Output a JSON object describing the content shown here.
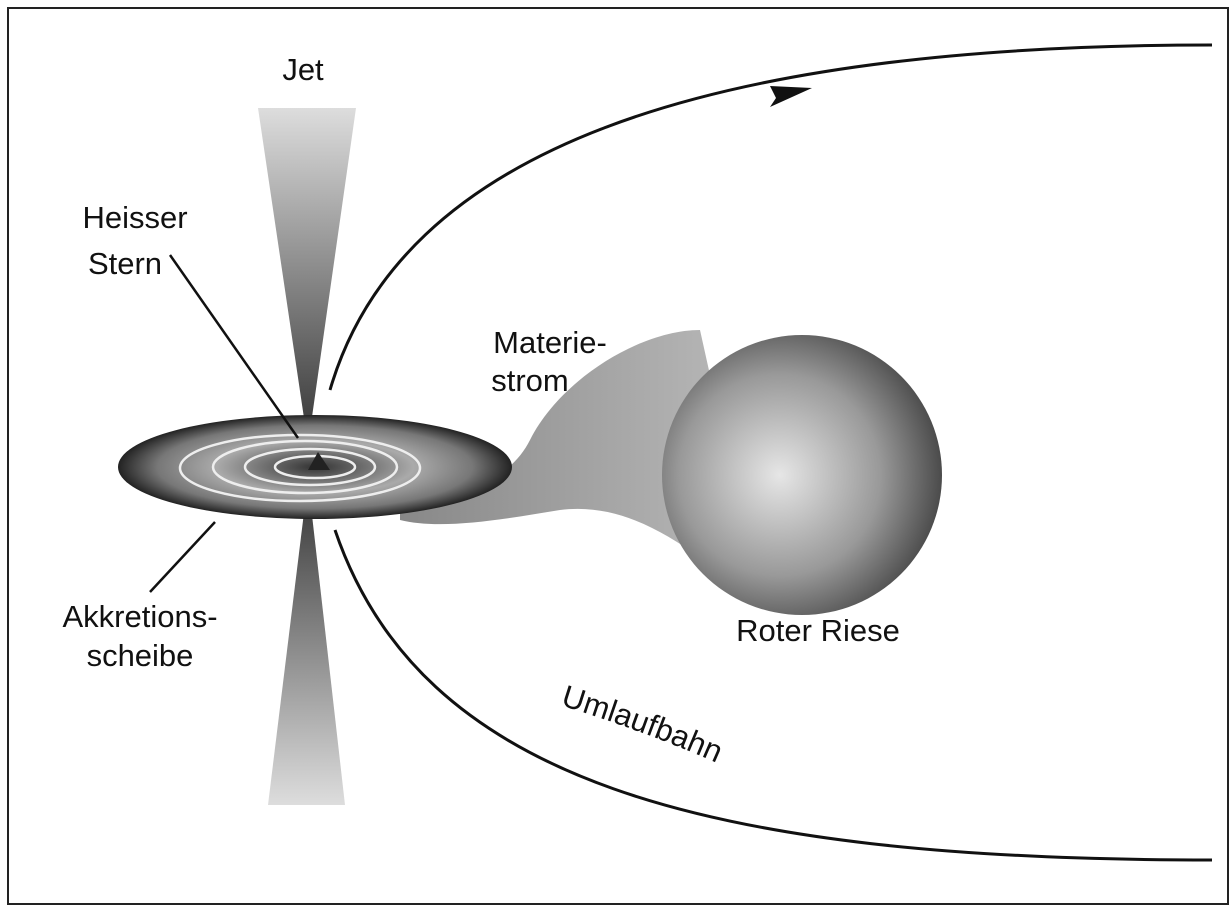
{
  "labels": {
    "jet": "Jet",
    "hot_star": [
      "Heisser",
      "Stern"
    ],
    "matter_stream": [
      "Materie-",
      "strom"
    ],
    "accretion_disk": [
      "Akkretions-",
      "scheibe"
    ],
    "red_giant": "Roter Riese",
    "orbit": "Umlaufbahn"
  }
}
